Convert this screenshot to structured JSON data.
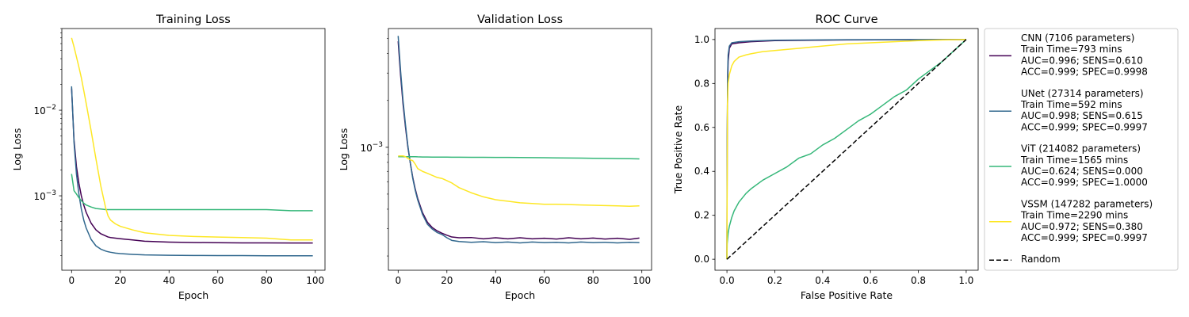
{
  "series_colors": {
    "cnn": "#440154",
    "unet": "#31688e",
    "vit": "#35b779",
    "vssm": "#fde725",
    "random": "#000000"
  },
  "legend": {
    "entries": [
      {
        "key": "cnn",
        "lines": [
          "CNN (7106 parameters)",
          "Train Time=793 mins",
          "AUC=0.996; SENS=0.610",
          "ACC=0.999; SPEC=0.9998"
        ]
      },
      {
        "key": "unet",
        "lines": [
          "UNet (27314 parameters)",
          "Train Time=592 mins",
          "AUC=0.998; SENS=0.615",
          "ACC=0.999; SPEC=0.9997"
        ]
      },
      {
        "key": "vit",
        "lines": [
          "ViT (214082 parameters)",
          "Train Time=1565 mins",
          "AUC=0.624; SENS=0.000",
          "ACC=0.999; SPEC=1.0000"
        ]
      },
      {
        "key": "vssm",
        "lines": [
          "VSSM (147282 parameters)",
          "Train Time=2290 mins",
          "AUC=0.972; SENS=0.380",
          "ACC=0.999; SPEC=0.9997"
        ]
      },
      {
        "key": "random",
        "lines": [
          "Random"
        ]
      }
    ]
  },
  "chart_data": [
    {
      "type": "line",
      "title": "Training Loss",
      "xlabel": "Epoch",
      "ylabel": "Log Loss",
      "yscale": "log",
      "xlim": [
        -4,
        104
      ],
      "ylim": [
        0.000135,
        0.09
      ],
      "xticks": [
        "0",
        "20",
        "40",
        "60",
        "80",
        "100"
      ],
      "yticks": [
        {
          "base": "10",
          "exp": "−2",
          "value": 0.01
        },
        {
          "base": "10",
          "exp": "−3",
          "value": 0.001
        }
      ],
      "x": [
        0,
        1,
        2,
        3,
        4,
        5,
        6,
        8,
        10,
        12,
        14,
        15,
        16,
        18,
        20,
        25,
        30,
        40,
        50,
        60,
        70,
        80,
        90,
        99
      ],
      "series": [
        {
          "key": "cnn",
          "values": [
            0.018,
            0.0045,
            0.0022,
            0.0014,
            0.001,
            0.00078,
            0.00064,
            0.00048,
            0.0004,
            0.00036,
            0.00034,
            0.00033,
            0.000325,
            0.00032,
            0.000315,
            0.000305,
            0.000295,
            0.000288,
            0.000285,
            0.000283,
            0.000282,
            0.000282,
            0.000281,
            0.000281
          ]
        },
        {
          "key": "unet",
          "values": [
            0.019,
            0.0042,
            0.0018,
            0.00105,
            0.0007,
            0.00052,
            0.00042,
            0.00031,
            0.00026,
            0.000238,
            0.000226,
            0.000222,
            0.000219,
            0.000214,
            0.000211,
            0.000207,
            0.000204,
            0.000202,
            0.000201,
            0.0002,
            0.0002,
            0.000199,
            0.000199,
            0.000199
          ]
        },
        {
          "key": "vit",
          "values": [
            0.0018,
            0.00115,
            0.00105,
            0.00095,
            0.00088,
            0.00082,
            0.00078,
            0.00074,
            0.00071,
            0.0007,
            0.00069,
            0.00069,
            0.00069,
            0.00069,
            0.00069,
            0.00069,
            0.00069,
            0.00069,
            0.00069,
            0.00069,
            0.00069,
            0.00069,
            0.00067,
            0.00067
          ]
        },
        {
          "key": "vssm",
          "values": [
            0.07,
            0.055,
            0.042,
            0.032,
            0.024,
            0.017,
            0.012,
            0.0058,
            0.0027,
            0.0013,
            0.00072,
            0.00058,
            0.00052,
            0.00047,
            0.00044,
            0.0004,
            0.00037,
            0.000345,
            0.000335,
            0.00033,
            0.000325,
            0.00032,
            0.000305,
            0.000305
          ]
        }
      ]
    },
    {
      "type": "line",
      "title": "Validation Loss",
      "xlabel": "Epoch",
      "ylabel": "Log Loss",
      "yscale": "log",
      "xlim": [
        -4,
        104
      ],
      "ylim": [
        0.000162,
        0.0058
      ],
      "xticks": [
        "0",
        "20",
        "40",
        "60",
        "80",
        "100"
      ],
      "yticks": [
        {
          "base": "10",
          "exp": "−3",
          "value": 0.001
        }
      ],
      "x": [
        0,
        1,
        2,
        3,
        4,
        5,
        6,
        7,
        8,
        10,
        12,
        14,
        16,
        18,
        20,
        22,
        25,
        30,
        35,
        40,
        45,
        50,
        55,
        60,
        65,
        70,
        75,
        80,
        85,
        90,
        95,
        99
      ],
      "series": [
        {
          "key": "cnn",
          "values": [
            0.0048,
            0.0029,
            0.0019,
            0.00135,
            0.001,
            0.00079,
            0.00064,
            0.00054,
            0.00047,
            0.00038,
            0.00033,
            0.000305,
            0.00029,
            0.00028,
            0.000272,
            0.000265,
            0.000262,
            0.000263,
            0.000258,
            0.000262,
            0.000258,
            0.000262,
            0.000258,
            0.00026,
            0.000257,
            0.000262,
            0.000258,
            0.000261,
            0.000257,
            0.00026,
            0.000256,
            0.000261
          ]
        },
        {
          "key": "unet",
          "values": [
            0.0052,
            0.0031,
            0.002,
            0.0014,
            0.00102,
            0.00079,
            0.00063,
            0.00053,
            0.00046,
            0.00037,
            0.00032,
            0.000298,
            0.000283,
            0.000275,
            0.000262,
            0.000252,
            0.000248,
            0.000245,
            0.000247,
            0.000244,
            0.000246,
            0.000243,
            0.000246,
            0.000244,
            0.000245,
            0.000243,
            0.000246,
            0.000244,
            0.000245,
            0.000243,
            0.000245,
            0.000244
          ]
        },
        {
          "key": "vit",
          "values": [
            0.00087,
            0.00087,
            0.00087,
            0.00087,
            0.00087,
            0.00087,
            0.00087,
            0.00087,
            0.000868,
            0.000866,
            0.000866,
            0.000865,
            0.000865,
            0.000864,
            0.000864,
            0.000863,
            0.000863,
            0.000862,
            0.000862,
            0.000861,
            0.000861,
            0.000859,
            0.000858,
            0.000857,
            0.000855,
            0.000853,
            0.000852,
            0.000849,
            0.000848,
            0.000846,
            0.000844,
            0.000842
          ]
        },
        {
          "key": "vssm",
          "values": [
            0.00088,
            0.00088,
            0.00088,
            0.00087,
            0.00085,
            0.00083,
            0.00082,
            0.00078,
            0.00073,
            0.0007,
            0.00068,
            0.00066,
            0.00064,
            0.00063,
            0.00061,
            0.00059,
            0.00055,
            0.00051,
            0.00048,
            0.00046,
            0.00045,
            0.00044,
            0.000435,
            0.00043,
            0.00043,
            0.000428,
            0.000426,
            0.000424,
            0.000422,
            0.00042,
            0.000418,
            0.00042
          ]
        }
      ]
    },
    {
      "type": "line",
      "title": "ROC Curve",
      "xlabel": "False Positive Rate",
      "ylabel": "True Positive Rate",
      "xlim": [
        -0.05,
        1.05
      ],
      "ylim": [
        -0.05,
        1.05
      ],
      "xticks": [
        "0.0",
        "0.2",
        "0.4",
        "0.6",
        "0.8",
        "1.0"
      ],
      "yticks": [
        "0.0",
        "0.2",
        "0.4",
        "0.6",
        "0.8",
        "1.0"
      ],
      "series": [
        {
          "key": "cnn",
          "x": [
            0,
            0.001,
            0.003,
            0.005,
            0.01,
            0.02,
            0.05,
            0.1,
            0.2,
            0.5,
            1.0
          ],
          "y": [
            0,
            0.5,
            0.8,
            0.9,
            0.96,
            0.98,
            0.985,
            0.99,
            0.995,
            0.998,
            1.0
          ]
        },
        {
          "key": "unet",
          "x": [
            0,
            0.001,
            0.003,
            0.005,
            0.01,
            0.02,
            0.05,
            0.1,
            0.2,
            0.5,
            1.0
          ],
          "y": [
            0,
            0.55,
            0.85,
            0.93,
            0.97,
            0.985,
            0.99,
            0.993,
            0.997,
            0.999,
            1.0
          ]
        },
        {
          "key": "vit",
          "x": [
            0,
            0.001,
            0.005,
            0.01,
            0.02,
            0.03,
            0.05,
            0.08,
            0.1,
            0.15,
            0.2,
            0.25,
            0.3,
            0.35,
            0.4,
            0.45,
            0.5,
            0.55,
            0.6,
            0.65,
            0.7,
            0.75,
            0.8,
            0.85,
            0.9,
            0.95,
            1.0
          ],
          "y": [
            0,
            0.07,
            0.12,
            0.15,
            0.19,
            0.22,
            0.26,
            0.3,
            0.32,
            0.36,
            0.39,
            0.42,
            0.46,
            0.48,
            0.52,
            0.55,
            0.59,
            0.63,
            0.66,
            0.7,
            0.74,
            0.77,
            0.82,
            0.86,
            0.9,
            0.95,
            1.0
          ]
        },
        {
          "key": "vssm",
          "x": [
            0,
            0.002,
            0.005,
            0.01,
            0.02,
            0.03,
            0.05,
            0.08,
            0.1,
            0.15,
            0.2,
            0.3,
            0.4,
            0.5,
            0.6,
            0.7,
            0.8,
            0.9,
            1.0
          ],
          "y": [
            0,
            0.7,
            0.8,
            0.84,
            0.88,
            0.9,
            0.92,
            0.93,
            0.935,
            0.945,
            0.95,
            0.96,
            0.97,
            0.98,
            0.985,
            0.99,
            0.995,
            0.998,
            1.0
          ]
        },
        {
          "key": "random",
          "x": [
            0,
            1
          ],
          "y": [
            0,
            1
          ],
          "dashed": true
        }
      ]
    }
  ]
}
